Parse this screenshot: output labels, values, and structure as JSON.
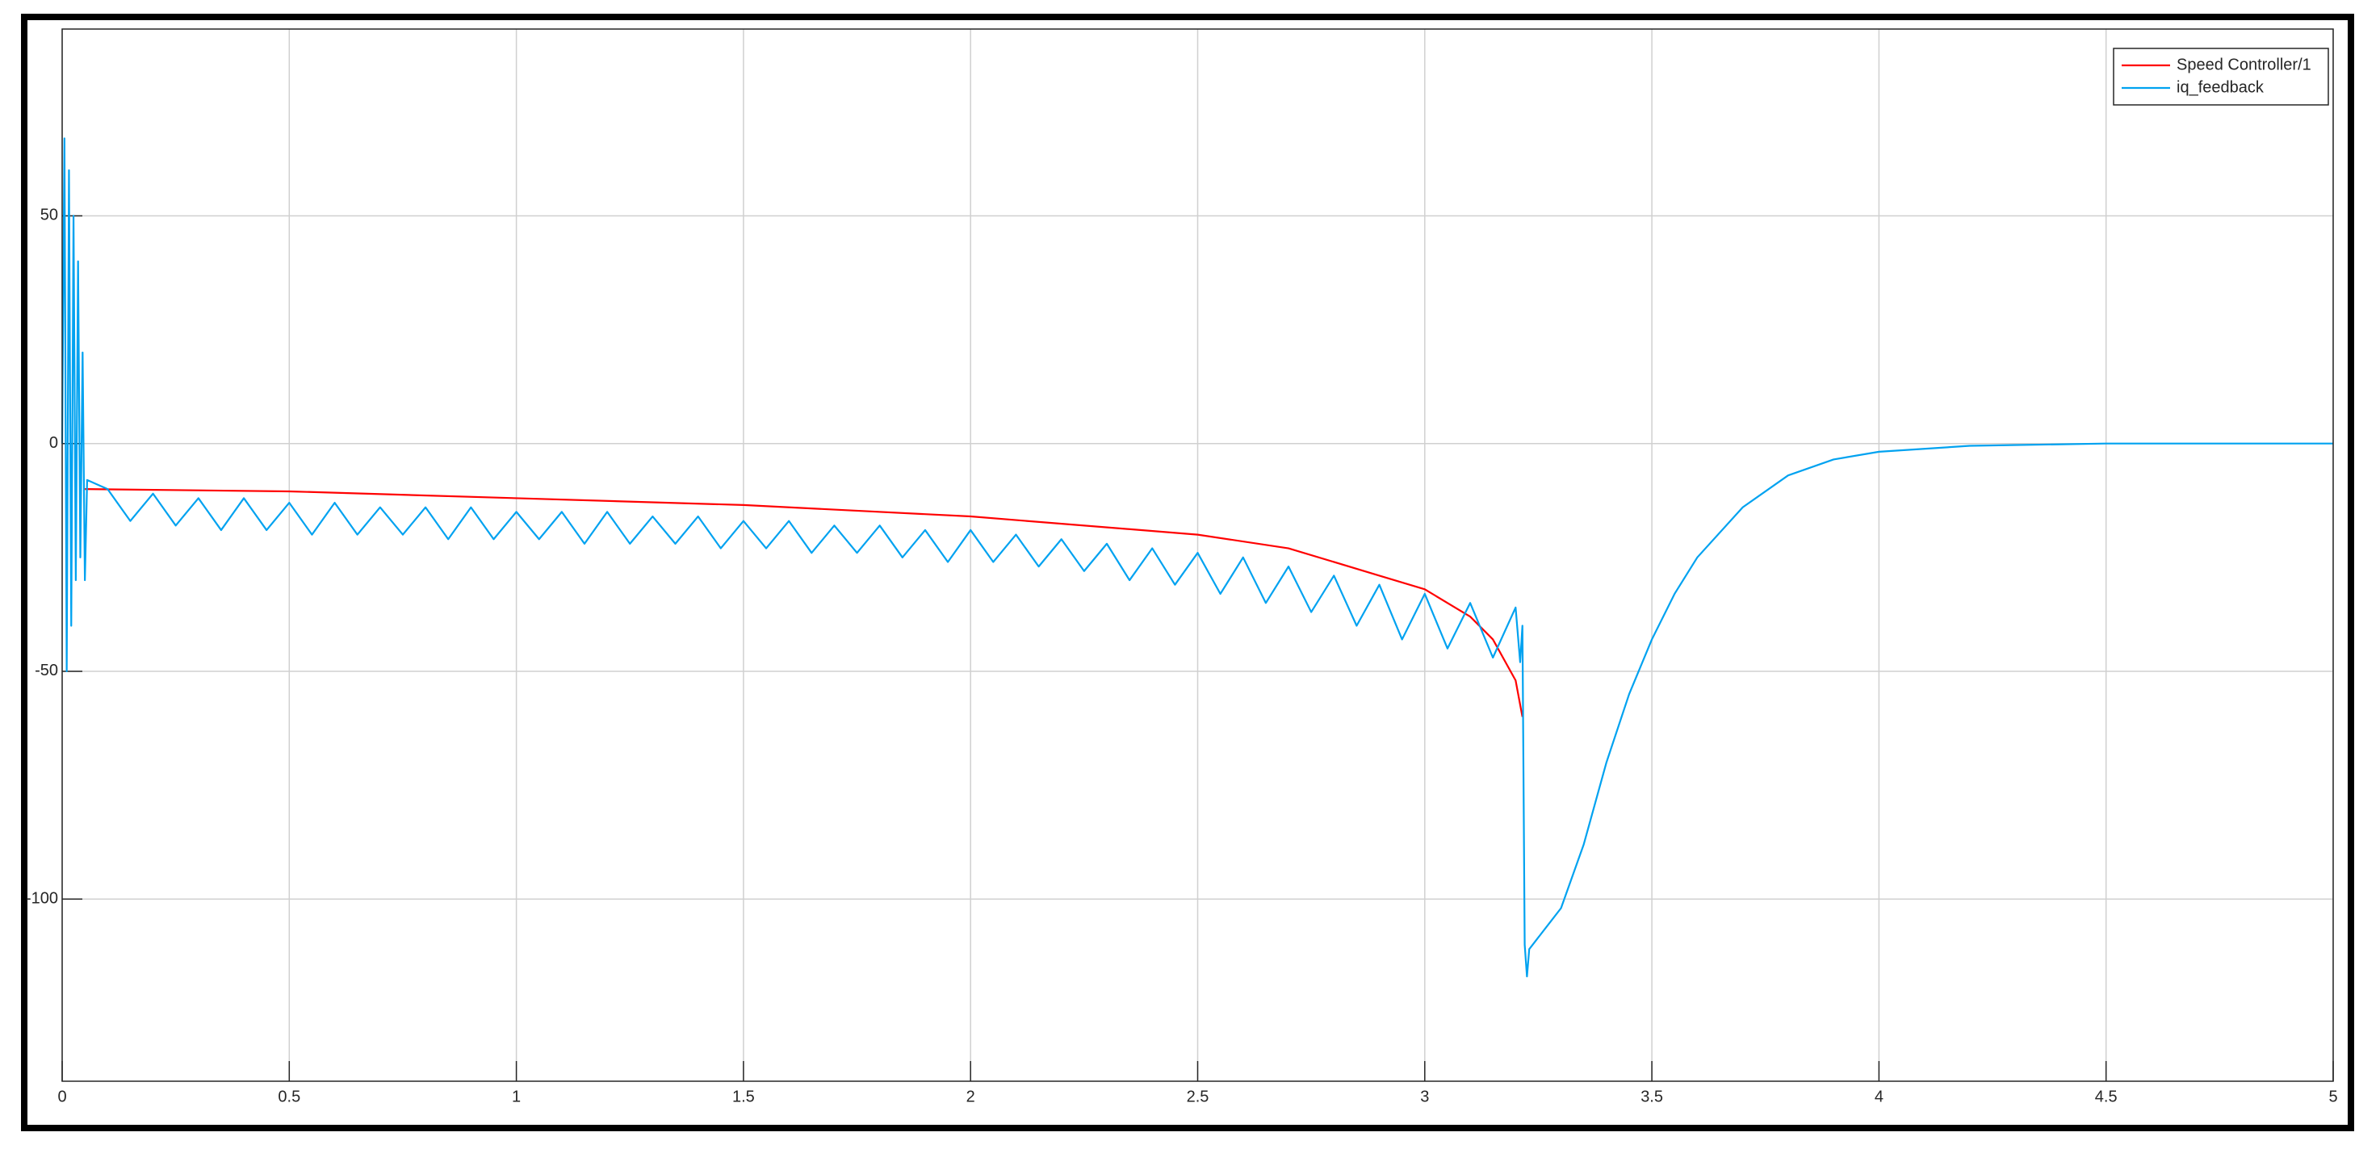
{
  "chart_data": {
    "type": "line",
    "xlim": [
      0,
      5
    ],
    "xticks": [
      0,
      0.5,
      1,
      1.5,
      2,
      2.5,
      3,
      3.5,
      4,
      4.5,
      5
    ],
    "ylim": [
      -140,
      91
    ],
    "yticks": [
      -100,
      -50,
      0,
      50
    ],
    "grid": true,
    "legend": "top-right",
    "series": [
      {
        "name": "Speed Controller/1",
        "color": "#ff0000",
        "x": [
          0.05,
          0.5,
          1.0,
          1.5,
          2.0,
          2.5,
          2.7,
          2.9,
          3.0,
          3.1,
          3.15,
          3.2,
          3.215
        ],
        "values": [
          -10,
          -10.5,
          -12,
          -13.5,
          -16,
          -20,
          -23,
          -29,
          -32,
          -38,
          -43,
          -52,
          -60
        ]
      },
      {
        "name": "iq_feedback",
        "color": "#00a2f0",
        "x": [
          0,
          0.005,
          0.01,
          0.015,
          0.02,
          0.025,
          0.03,
          0.035,
          0.04,
          0.045,
          0.05,
          0.055,
          0.1,
          0.15,
          0.2,
          0.25,
          0.3,
          0.35,
          0.4,
          0.45,
          0.5,
          0.55,
          0.6,
          0.65,
          0.7,
          0.75,
          0.8,
          0.85,
          0.9,
          0.95,
          1.0,
          1.05,
          1.1,
          1.15,
          1.2,
          1.25,
          1.3,
          1.35,
          1.4,
          1.45,
          1.5,
          1.55,
          1.6,
          1.65,
          1.7,
          1.75,
          1.8,
          1.85,
          1.9,
          1.95,
          2.0,
          2.05,
          2.1,
          2.15,
          2.2,
          2.25,
          2.3,
          2.35,
          2.4,
          2.45,
          2.5,
          2.55,
          2.6,
          2.65,
          2.7,
          2.75,
          2.8,
          2.85,
          2.9,
          2.95,
          3.0,
          3.05,
          3.1,
          3.15,
          3.2,
          3.21,
          3.215,
          3.22,
          3.225,
          3.23,
          3.3,
          3.35,
          3.4,
          3.45,
          3.5,
          3.55,
          3.6,
          3.7,
          3.8,
          3.9,
          4.0,
          4.2,
          4.5,
          5
        ],
        "values": [
          0,
          67,
          -50,
          60,
          -40,
          50,
          -30,
          40,
          -25,
          20,
          -30,
          -8,
          -10,
          -17,
          -11,
          -18,
          -12,
          -19,
          -12,
          -19,
          -13,
          -20,
          -13,
          -20,
          -14,
          -20,
          -14,
          -21,
          -14,
          -21,
          -15,
          -21,
          -15,
          -22,
          -15,
          -22,
          -16,
          -22,
          -16,
          -23,
          -17,
          -23,
          -17,
          -24,
          -18,
          -24,
          -18,
          -25,
          -19,
          -26,
          -19,
          -26,
          -20,
          -27,
          -21,
          -28,
          -22,
          -30,
          -23,
          -31,
          -24,
          -33,
          -25,
          -35,
          -27,
          -37,
          -29,
          -40,
          -31,
          -43,
          -33,
          -45,
          -35,
          -47,
          -36,
          -48,
          -40,
          -110,
          -117,
          -111,
          -102,
          -88,
          -70,
          -55,
          -43,
          -33,
          -25,
          -14,
          -7,
          -3.5,
          -1.8,
          -0.5,
          0,
          0
        ]
      }
    ]
  }
}
